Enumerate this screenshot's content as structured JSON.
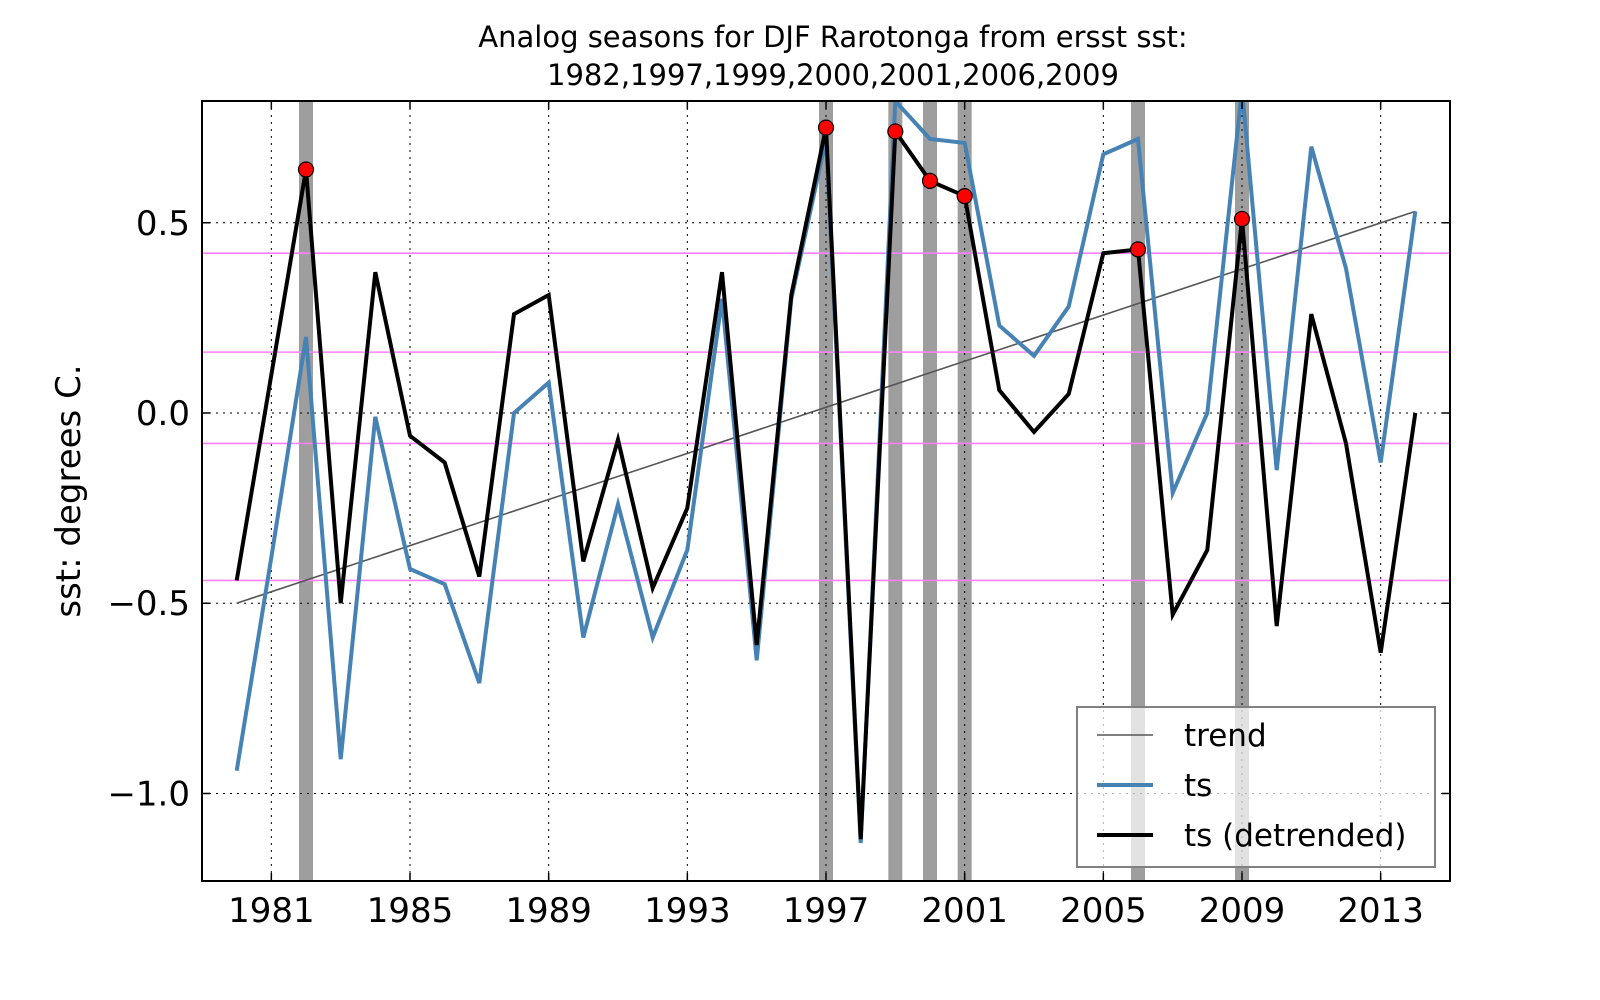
{
  "chart_data": {
    "type": "line",
    "title": "Analog seasons for DJF Rarotonga from ersst sst:",
    "subtitle": "1982,1997,1999,2000,2001,2006,2009",
    "xlabel": "",
    "ylabel": "sst: degrees C.",
    "xlim": [
      1979,
      2015
    ],
    "ylim": [
      -1.23,
      0.82
    ],
    "grid": true,
    "legend_position": "lower-right",
    "x_ticks": [
      1981,
      1985,
      1989,
      1993,
      1997,
      2001,
      2005,
      2009,
      2013
    ],
    "x_tick_labels": [
      "1981",
      "1985",
      "1989",
      "1993",
      "1997",
      "2001",
      "2005",
      "2009",
      "2013"
    ],
    "y_ticks": [
      0.5,
      0.0,
      -0.5,
      -1.0
    ],
    "y_tick_labels": [
      "0.5",
      "0.0",
      "−0.5",
      "−1.0"
    ],
    "x": [
      1980,
      1981,
      1982,
      1983,
      1984,
      1985,
      1986,
      1987,
      1988,
      1989,
      1990,
      1991,
      1992,
      1993,
      1994,
      1995,
      1996,
      1997,
      1998,
      1999,
      2000,
      2001,
      2002,
      2003,
      2004,
      2005,
      2006,
      2007,
      2008,
      2009,
      2010,
      2011,
      2012,
      2013,
      2014
    ],
    "series": [
      {
        "name": "trend",
        "color": "#555555",
        "points": [
          [
            1980,
            -0.5
          ],
          [
            2014,
            0.53
          ]
        ]
      },
      {
        "name": "ts",
        "color": "#4682b4",
        "values": [
          -0.94,
          -0.38,
          0.2,
          -0.91,
          -0.01,
          -0.41,
          -0.45,
          -0.71,
          0.0,
          0.08,
          -0.59,
          -0.24,
          -0.59,
          -0.36,
          0.3,
          -0.65,
          0.3,
          0.72,
          -1.13,
          0.82,
          0.72,
          0.71,
          0.23,
          0.15,
          0.28,
          0.68,
          0.72,
          -0.21,
          0.0,
          0.85,
          -0.15,
          0.7,
          0.38,
          -0.13,
          0.53
        ]
      },
      {
        "name": "ts (detrended)",
        "color": "#000000",
        "values": [
          -0.44,
          0.1,
          0.64,
          -0.5,
          0.37,
          -0.06,
          -0.13,
          -0.43,
          0.26,
          0.31,
          -0.39,
          -0.07,
          -0.46,
          -0.25,
          0.37,
          -0.61,
          0.31,
          0.75,
          -1.12,
          0.74,
          0.61,
          0.57,
          0.06,
          -0.05,
          0.05,
          0.42,
          0.43,
          -0.53,
          -0.36,
          0.51,
          -0.56,
          0.26,
          -0.08,
          -0.63,
          0.0
        ]
      }
    ],
    "analog_years": [
      1982,
      1997,
      1999,
      2000,
      2001,
      2006,
      2009
    ],
    "analog_marker_color": "#ff0000",
    "analog_band_color": "#999999",
    "reference_lines": [
      0.42,
      0.16,
      -0.08,
      -0.44
    ],
    "reference_line_color": "#ff80ff",
    "legend": [
      {
        "label": "trend",
        "color": "#555555"
      },
      {
        "label": "ts",
        "color": "#4682b4"
      },
      {
        "label": "ts (detrended)",
        "color": "#000000"
      }
    ]
  }
}
